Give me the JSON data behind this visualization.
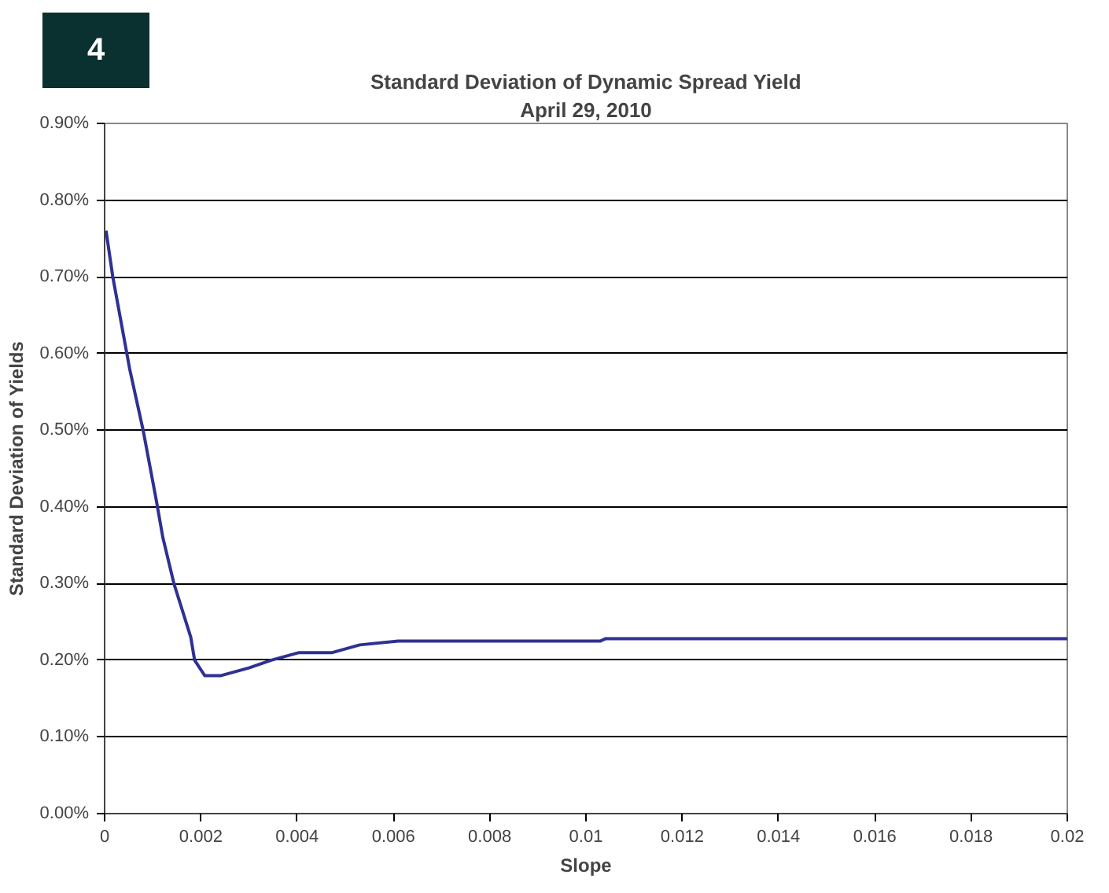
{
  "chart_data": {
    "type": "line",
    "title": "Standard Deviation of Dynamic Spread Yield",
    "subtitle": "April 29, 2010",
    "xlabel": "Slope",
    "ylabel": "Standard Deviation of Yields",
    "annotations": [
      "4"
    ],
    "series": [
      {
        "color": "#2e3192",
        "x": [
          3e-05,
          0.00017,
          0.00052,
          0.0008,
          0.00107,
          0.00121,
          0.00144,
          0.00179,
          0.00187,
          0.00208,
          0.00242,
          0.003,
          0.00346,
          0.00404,
          0.00473,
          0.0053,
          0.0061,
          0.0103,
          0.0104,
          0.02
        ],
        "values": [
          0.76,
          0.7,
          0.58,
          0.5,
          0.41,
          0.36,
          0.3,
          0.23,
          0.2,
          0.18,
          0.18,
          0.19,
          0.2,
          0.21,
          0.21,
          0.22,
          0.225,
          0.225,
          0.228,
          0.228
        ]
      }
    ],
    "xlim": [
      0,
      0.02
    ],
    "ylim": [
      0,
      0.9
    ],
    "xticks": [
      0,
      0.002,
      0.004,
      0.006,
      0.008,
      0.01,
      0.012,
      0.014,
      0.016,
      0.018,
      0.02
    ],
    "yticks": [
      {
        "value": 0,
        "label": "0.00%"
      },
      {
        "value": 0.1,
        "label": "0.10%"
      },
      {
        "value": 0.2,
        "label": "0.20%"
      },
      {
        "value": 0.3,
        "label": "0.30%"
      },
      {
        "value": 0.4,
        "label": "0.40%"
      },
      {
        "value": 0.5,
        "label": "0.50%"
      },
      {
        "value": 0.6,
        "label": "0.60%"
      },
      {
        "value": 0.7,
        "label": "0.70%"
      },
      {
        "value": 0.8,
        "label": "0.80%"
      },
      {
        "value": 0.9,
        "label": "0.90%"
      }
    ],
    "grid": "y",
    "marker": "none",
    "line_style": "solid"
  }
}
